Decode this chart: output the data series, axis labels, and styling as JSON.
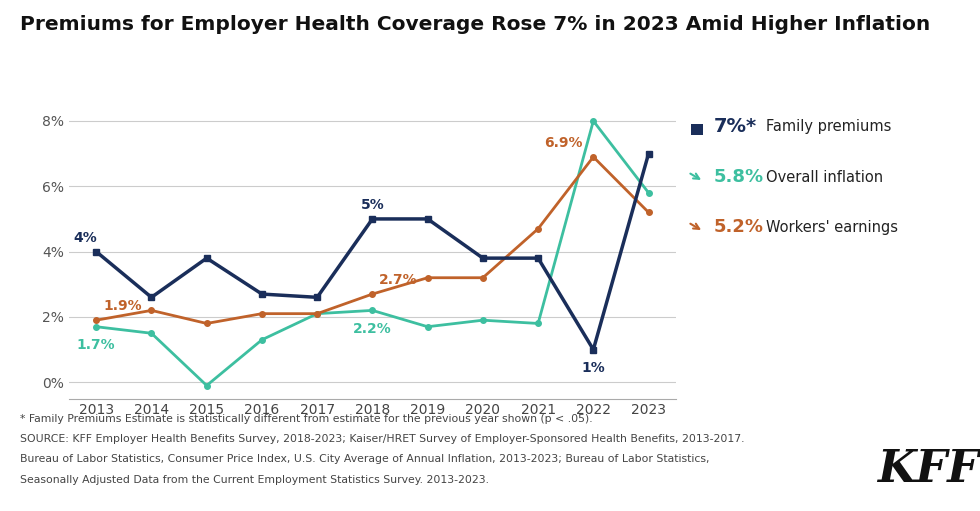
{
  "title": "Premiums for Employer Health Coverage Rose 7% in 2023 Amid Higher Inflation",
  "years": [
    2013,
    2014,
    2015,
    2016,
    2017,
    2018,
    2019,
    2020,
    2021,
    2022,
    2023
  ],
  "family_premiums": [
    4.0,
    2.6,
    3.8,
    2.7,
    2.6,
    5.0,
    5.0,
    3.8,
    3.8,
    1.0,
    7.0
  ],
  "overall_inflation": [
    1.7,
    1.5,
    -0.1,
    1.3,
    2.1,
    2.2,
    1.7,
    1.9,
    1.8,
    8.0,
    5.8
  ],
  "workers_earnings": [
    1.9,
    2.2,
    1.8,
    2.1,
    2.1,
    2.7,
    3.2,
    3.2,
    4.7,
    6.9,
    5.2
  ],
  "family_premiums_color": "#1a2e5a",
  "overall_inflation_color": "#3dbfa0",
  "workers_earnings_color": "#c0622a",
  "family_premiums_label": "Family premiums",
  "overall_inflation_label": "Overall inflation",
  "workers_earnings_label": "Workers' earnings",
  "family_premiums_end_label": "7%*",
  "overall_inflation_end_label": "5.8%",
  "workers_earnings_end_label": "5.2%",
  "ylim": [
    -0.5,
    9.2
  ],
  "yticks": [
    0,
    2,
    4,
    6,
    8
  ],
  "ytick_labels": [
    "0%",
    "2%",
    "4%",
    "6%",
    "8%"
  ],
  "background_color": "#ffffff",
  "footnote_line1": "* Family Premiums Estimate is statistically different from estimate for the previous year shown (p < .05).",
  "footnote_line2": "SOURCE: KFF Employer Health Benefits Survey, 2018-2023; Kaiser/HRET Survey of Employer-Sponsored Health Benefits, 2013-2017.",
  "footnote_line3": "Bureau of Labor Statistics, Consumer Price Index, U.S. City Average of Annual Inflation, 2013-2023; Bureau of Labor Statistics,",
  "footnote_line4": "Seasonally Adjusted Data from the Current Employment Statistics Survey. 2013-2023."
}
